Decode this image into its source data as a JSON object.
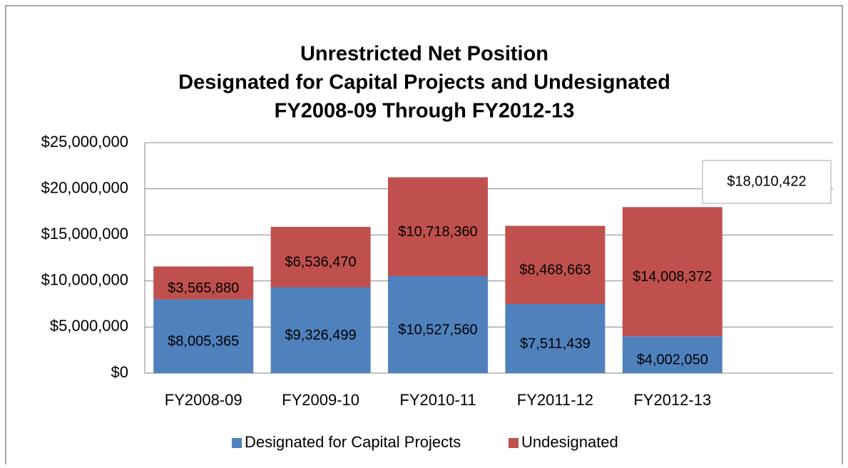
{
  "chart_data": {
    "type": "stacked_bar",
    "title": [
      "Unrestricted Net Position",
      "Designated for Capital Projects and Undesignated",
      "FY2008-09 Through FY2012-13"
    ],
    "categories": [
      "FY2008-09",
      "FY2009-10",
      "FY2010-11",
      "FY2011-12",
      "FY2012-13"
    ],
    "series": [
      {
        "name": "Designated for Capital Projects",
        "color": "#4f81bd",
        "values": [
          8005365,
          9326499,
          10527560,
          7511439,
          4002050
        ],
        "value_labels": [
          "$8,005,365",
          "$9,326,499",
          "$10,527,560",
          "$7,511,439",
          "$4,002,050"
        ]
      },
      {
        "name": "Undesignated",
        "color": "#c0504d",
        "values": [
          3565880,
          6536470,
          10718360,
          8468663,
          14008372
        ],
        "value_labels": [
          "$3,565,880",
          "$6,536,470",
          "$10,718,360",
          "$8,468,663",
          "$14,008,372"
        ]
      }
    ],
    "annotations": [
      {
        "text": "$18,010,422"
      }
    ],
    "ylim": [
      0,
      25000000
    ],
    "yticks": [
      {
        "value": 0,
        "label": "$0"
      },
      {
        "value": 5000000,
        "label": "$5,000,000"
      },
      {
        "value": 10000000,
        "label": "$10,000,000"
      },
      {
        "value": 15000000,
        "label": "$15,000,000"
      },
      {
        "value": 20000000,
        "label": "$20,000,000"
      },
      {
        "value": 25000000,
        "label": "$25,000,000"
      }
    ],
    "grid": true,
    "legend": "bottom"
  }
}
